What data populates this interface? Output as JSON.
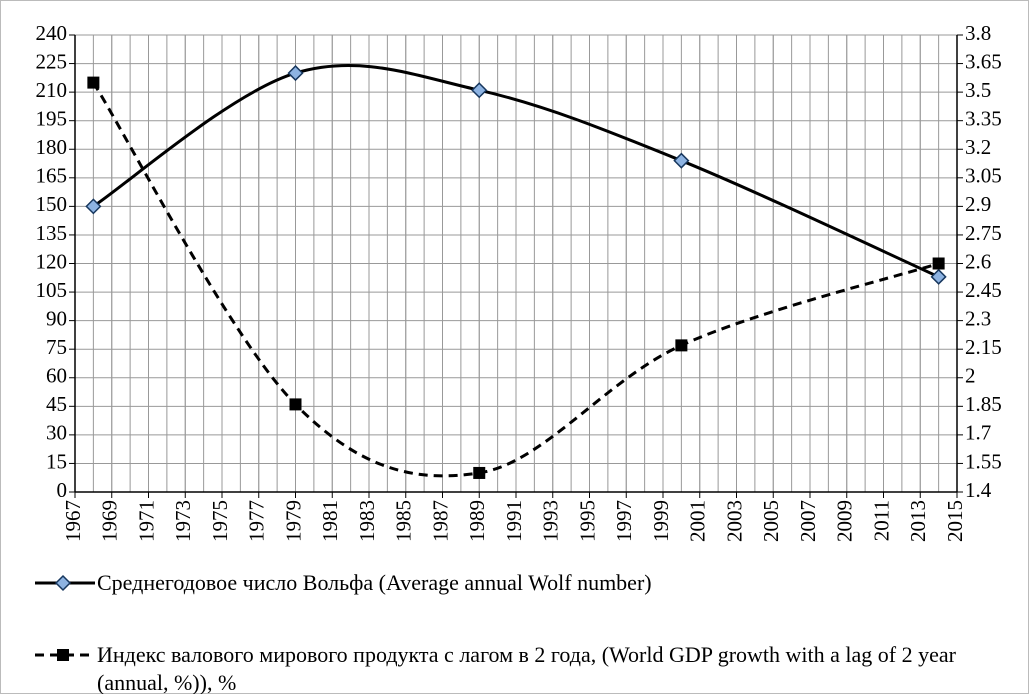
{
  "chart_data": {
    "type": "line",
    "x": [
      1968,
      1979,
      1989,
      2000,
      2014
    ],
    "xlim": [
      1967,
      2015
    ],
    "xticks": [
      1967,
      1969,
      1971,
      1973,
      1975,
      1977,
      1979,
      1981,
      1983,
      1985,
      1987,
      1989,
      1991,
      1993,
      1995,
      1997,
      1999,
      2001,
      2003,
      2005,
      2007,
      2009,
      2011,
      2013,
      2015
    ],
    "ylim": [
      0,
      240
    ],
    "yticks": [
      0,
      15,
      30,
      45,
      60,
      75,
      90,
      105,
      120,
      135,
      150,
      165,
      180,
      195,
      210,
      225,
      240
    ],
    "y2lim": [
      1.4,
      3.8
    ],
    "y2ticks": [
      1.4,
      1.55,
      1.7,
      1.85,
      2,
      2.15,
      2.3,
      2.45,
      2.6,
      2.75,
      2.9,
      3.05,
      3.2,
      3.35,
      3.5,
      3.65,
      3.8
    ],
    "grid": true,
    "legend": "bottom",
    "series": [
      {
        "name": "Среднегодовое число Вольфа (Average annual Wolf number)",
        "color": "#000000",
        "marker": "diamond",
        "dashed": false,
        "values": [
          150,
          220,
          211,
          174,
          113
        ]
      },
      {
        "name": "Индекс валового мирового продукта с лагом в 2 года, (World GDP growth with a lag of 2 year (annual, %)), %",
        "color": "#000000",
        "marker": "square",
        "dashed": true,
        "axis": "y2",
        "values": [
          3.55,
          1.86,
          1.5,
          2.17,
          2.6
        ]
      }
    ]
  }
}
